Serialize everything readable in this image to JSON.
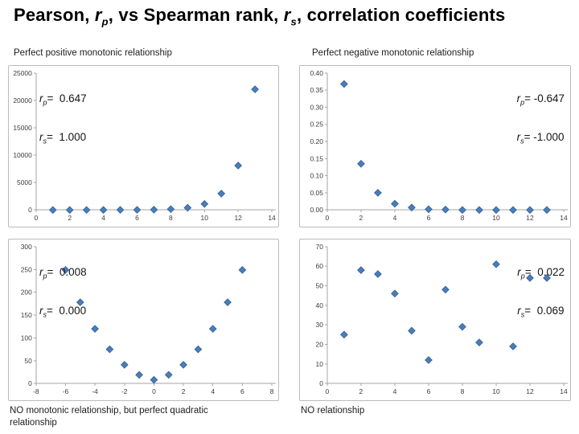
{
  "title": {
    "pre": "Pearson, ",
    "r1": "r",
    "sub1": "p",
    "mid": ", vs Spearman rank, ",
    "r2": "r",
    "sub2": "s",
    "post": ", correlation coefficients"
  },
  "symbols": {
    "r": "r",
    "p": "p",
    "s": "s",
    "eq": "="
  },
  "colors": {
    "marker_fill": "#4a7ebb",
    "marker_stroke": "#39669c",
    "axis": "#a6a6a6",
    "tick_label": "#3c3c3c",
    "chart_border": "#bcbcbc"
  },
  "chart_data": [
    {
      "name": "perfect-positive-monotonic",
      "type": "scatter",
      "title": "Perfect positive monotonic relationship",
      "caption_position": "top",
      "annotations": {
        "rp": 0.647,
        "rs": 1.0,
        "rp_text": "  0.647",
        "rs_text": "  1.000",
        "corner": "top-left"
      },
      "x": [
        1,
        2,
        3,
        4,
        5,
        6,
        7,
        8,
        9,
        10,
        11,
        12,
        13
      ],
      "y": [
        0.1,
        0.4,
        1,
        2.7,
        7.4,
        20,
        55,
        148,
        403,
        1097,
        2981,
        8103,
        22026
      ],
      "xlim": [
        0,
        14
      ],
      "ylim": [
        0,
        25000
      ],
      "xtick_values": [
        0,
        2,
        4,
        6,
        8,
        10,
        12,
        14
      ],
      "xtick_labels": [
        "0",
        "2",
        "4",
        "6",
        "8",
        "10",
        "12",
        "14"
      ],
      "ytick_values": [
        0,
        5000,
        10000,
        15000,
        20000,
        25000
      ],
      "ytick_labels": [
        "0",
        "5000",
        "10000",
        "15000",
        "20000",
        "25000"
      ],
      "grid": false,
      "legend": false
    },
    {
      "name": "perfect-negative-monotonic",
      "type": "scatter",
      "title": "Perfect negative monotonic relationship",
      "caption_position": "top",
      "annotations": {
        "rp": -0.647,
        "rs": -1.0,
        "rp_text": " -0.647",
        "rs_text": " -1.000",
        "corner": "top-right"
      },
      "x": [
        1,
        2,
        3,
        4,
        5,
        6,
        7,
        8,
        9,
        10,
        11,
        12,
        13
      ],
      "y": [
        0.368,
        0.135,
        0.05,
        0.018,
        0.007,
        0.002,
        0.001,
        0,
        0,
        0,
        0,
        0,
        0
      ],
      "xlim": [
        0,
        14
      ],
      "ylim": [
        0,
        0.4
      ],
      "xtick_values": [
        0,
        2,
        4,
        6,
        8,
        10,
        12,
        14
      ],
      "xtick_labels": [
        "0",
        "2",
        "4",
        "6",
        "8",
        "10",
        "12",
        "14"
      ],
      "ytick_values": [
        0,
        0.05,
        0.1,
        0.15,
        0.2,
        0.25,
        0.3,
        0.35,
        0.4
      ],
      "ytick_labels": [
        "0.00",
        "0.05",
        "0.10",
        "0.15",
        "0.20",
        "0.25",
        "0.30",
        "0.35",
        "0.40"
      ],
      "grid": false,
      "legend": false
    },
    {
      "name": "quadratic-relationship",
      "type": "scatter",
      "title": "NO monotonic relationship, but perfect quadratic relationship",
      "caption_position": "bottom",
      "annotations": {
        "rp": 0.008,
        "rs": 0.0,
        "rp_text": "  0.008",
        "rs_text": "  0.000",
        "corner": "top-left"
      },
      "x": [
        -6,
        -5,
        -4,
        -3,
        -2,
        -1,
        0,
        1,
        2,
        3,
        4,
        5,
        6
      ],
      "y": [
        249,
        178,
        120,
        75,
        41,
        19,
        8,
        19,
        41,
        75,
        120,
        178,
        249
      ],
      "xlim": [
        -8,
        8
      ],
      "ylim": [
        0,
        300
      ],
      "xtick_values": [
        -8,
        -6,
        -4,
        -2,
        0,
        2,
        4,
        6,
        8
      ],
      "xtick_labels": [
        "-8",
        "-6",
        "-4",
        "-2",
        "0",
        "2",
        "4",
        "6",
        "8"
      ],
      "ytick_values": [
        0,
        50,
        100,
        150,
        200,
        250,
        300
      ],
      "ytick_labels": [
        "0",
        "50",
        "100",
        "150",
        "200",
        "250",
        "300"
      ],
      "grid": false,
      "legend": false
    },
    {
      "name": "no-relationship",
      "type": "scatter",
      "title": "NO relationship",
      "caption_position": "bottom",
      "annotations": {
        "rp": 0.022,
        "rs": 0.069,
        "rp_text": "  0.022",
        "rs_text": "  0.069",
        "corner": "top-right"
      },
      "x": [
        1,
        2,
        3,
        4,
        5,
        6,
        7,
        8,
        9,
        10,
        11,
        12,
        13
      ],
      "y": [
        25,
        58,
        56,
        46,
        27,
        12,
        48,
        29,
        21,
        61,
        19,
        54,
        54
      ],
      "xlim": [
        0,
        14
      ],
      "ylim": [
        0,
        70
      ],
      "xtick_values": [
        0,
        2,
        4,
        6,
        8,
        10,
        12,
        14
      ],
      "xtick_labels": [
        "0",
        "2",
        "4",
        "6",
        "8",
        "10",
        "12",
        "14"
      ],
      "ytick_values": [
        0,
        10,
        20,
        30,
        40,
        50,
        60,
        70
      ],
      "ytick_labels": [
        "0",
        "10",
        "20",
        "30",
        "40",
        "50",
        "60",
        "70"
      ],
      "grid": false,
      "legend": false
    }
  ]
}
